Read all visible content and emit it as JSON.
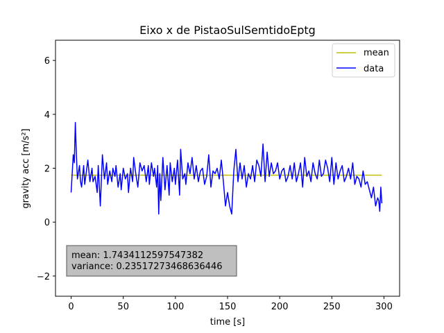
{
  "chart_data": {
    "type": "line",
    "title": "Eixo x de PistaoSulSemtidoEptg",
    "xlabel": "time [s]",
    "ylabel": "gravity acc [m/s²]",
    "xlim": [
      -15,
      315
    ],
    "ylim": [
      -2.75,
      6.75
    ],
    "xticks": [
      0,
      50,
      100,
      150,
      200,
      250,
      300
    ],
    "yticks": [
      -2,
      0,
      2,
      4,
      6
    ],
    "grid": false,
    "legend_position": "top-right",
    "series": [
      {
        "name": "mean",
        "color": "#bfbf00",
        "x": [
          0,
          298
        ],
        "y": [
          1.7434,
          1.7434
        ]
      },
      {
        "name": "data",
        "color": "#0000ff",
        "x": [
          0,
          2,
          3,
          4,
          5,
          6,
          8,
          9,
          10,
          12,
          13,
          14,
          16,
          18,
          20,
          21,
          23,
          25,
          26,
          28,
          30,
          32,
          34,
          35,
          37,
          39,
          40,
          42,
          43,
          45,
          47,
          48,
          50,
          52,
          54,
          55,
          57,
          59,
          60,
          62,
          64,
          66,
          68,
          70,
          72,
          74,
          75,
          77,
          79,
          80,
          82,
          83,
          84,
          85,
          86,
          88,
          90,
          92,
          94,
          95,
          97,
          99,
          100,
          102,
          104,
          105,
          107,
          109,
          110,
          112,
          114,
          116,
          118,
          120,
          122,
          124,
          126,
          128,
          130,
          132,
          134,
          136,
          138,
          140,
          142,
          144,
          146,
          148,
          150,
          152,
          154,
          156,
          158,
          160,
          162,
          164,
          166,
          168,
          170,
          172,
          174,
          176,
          178,
          180,
          182,
          184,
          186,
          188,
          190,
          192,
          194,
          196,
          198,
          200,
          202,
          204,
          206,
          208,
          210,
          212,
          214,
          216,
          218,
          220,
          222,
          224,
          226,
          228,
          230,
          232,
          234,
          236,
          238,
          240,
          242,
          244,
          246,
          248,
          250,
          252,
          254,
          256,
          258,
          260,
          262,
          264,
          266,
          268,
          270,
          272,
          274,
          276,
          278,
          280,
          282,
          284,
          286,
          288,
          290,
          292,
          294,
          295,
          296,
          297,
          298
        ],
        "y": [
          1.1,
          2.5,
          2.2,
          3.7,
          2.5,
          1.6,
          2.1,
          1.5,
          1.3,
          2.1,
          1.4,
          1.7,
          2.3,
          1.5,
          2.0,
          1.5,
          1.7,
          1.1,
          2.1,
          0.6,
          2.5,
          1.6,
          2.2,
          1.4,
          1.9,
          1.5,
          2.0,
          1.7,
          2.1,
          1.3,
          1.8,
          1.2,
          2.0,
          1.6,
          1.8,
          1.1,
          2.0,
          1.5,
          2.4,
          1.8,
          1.3,
          2.2,
          1.9,
          2.1,
          1.5,
          2.1,
          1.4,
          2.2,
          1.7,
          2.0,
          1.3,
          2.1,
          0.3,
          1.8,
          0.8,
          2.4,
          1.2,
          2.1,
          1.0,
          2.2,
          1.5,
          2.0,
          1.4,
          2.3,
          1.0,
          2.7,
          1.6,
          1.8,
          1.4,
          2.2,
          1.8,
          2.4,
          1.6,
          2.1,
          1.5,
          1.9,
          2.0,
          1.4,
          1.7,
          2.5,
          1.3,
          1.9,
          1.8,
          2.0,
          1.6,
          2.3,
          1.5,
          0.6,
          1.1,
          0.6,
          0.3,
          1.9,
          2.7,
          1.5,
          2.2,
          1.6,
          2.1,
          1.3,
          1.8,
          1.6,
          2.1,
          1.5,
          2.3,
          2.1,
          1.7,
          2.9,
          1.5,
          2.6,
          1.7,
          2.2,
          1.8,
          1.9,
          2.2,
          1.6,
          1.9,
          2.0,
          1.5,
          1.7,
          2.1,
          1.6,
          2.2,
          1.5,
          1.8,
          2.2,
          1.3,
          2.4,
          1.7,
          1.9,
          1.5,
          2.2,
          1.8,
          1.6,
          2.3,
          1.7,
          1.8,
          2.3,
          2.0,
          1.5,
          2.4,
          1.4,
          2.2,
          1.6,
          1.9,
          2.1,
          1.5,
          1.7,
          2.0,
          1.6,
          2.2,
          1.4,
          1.7,
          1.6,
          1.3,
          1.9,
          1.4,
          1.5,
          1.2,
          0.9,
          1.3,
          0.6,
          0.9,
          0.8,
          0.4,
          1.3,
          0.7
        ]
      }
    ],
    "annotation": {
      "mean_label": "mean: 1.7434112597547382",
      "variance_label": "variance: 0.23517273468636446"
    }
  }
}
